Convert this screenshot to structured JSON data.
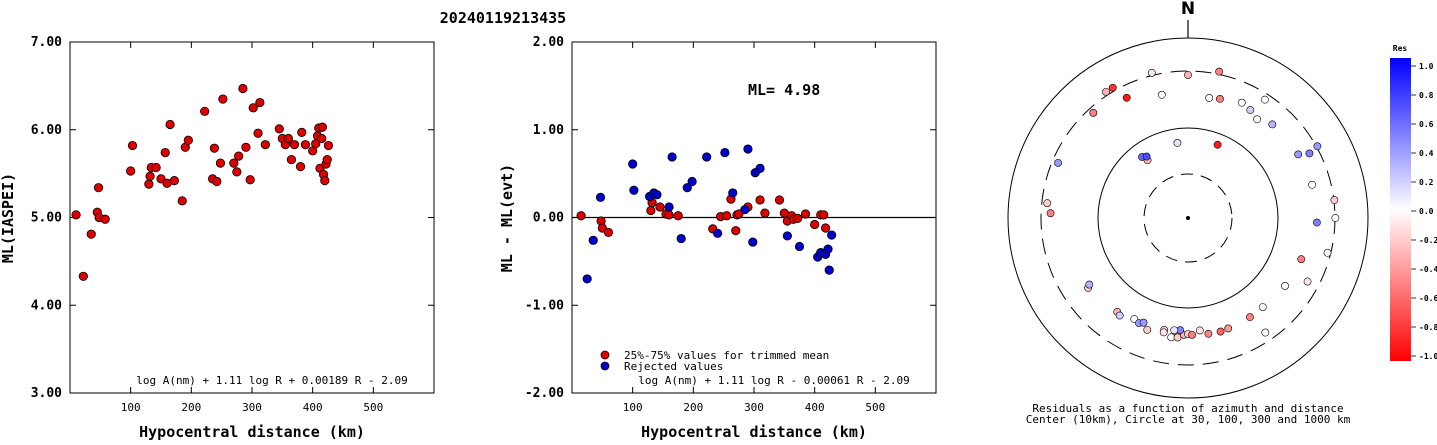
{
  "page_title": "20240119213435",
  "chart_data": [
    {
      "type": "scatter",
      "title": "",
      "xlabel": "Hypocentral distance (km)",
      "ylabel": "ML(IASPEI)",
      "xlim": [
        0,
        600
      ],
      "ylim": [
        3.0,
        7.0
      ],
      "x_ticks": [
        "100",
        "200",
        "300",
        "400",
        "500"
      ],
      "y_ticks": [
        "3.00",
        "4.00",
        "5.00",
        "6.00",
        "7.00"
      ],
      "grid": false,
      "formula": "log A(nm) + 1.11 log R + 0.00189 R - 2.09",
      "series": [
        {
          "color": "#dd0000",
          "points": [
            [
              10,
              5.03
            ],
            [
              22,
              4.33
            ],
            [
              35,
              4.81
            ],
            [
              45,
              5.06
            ],
            [
              47,
              5.34
            ],
            [
              48,
              5.0
            ],
            [
              58,
              4.98
            ],
            [
              100,
              5.53
            ],
            [
              103,
              5.82
            ],
            [
              130,
              5.38
            ],
            [
              132,
              5.47
            ],
            [
              134,
              5.57
            ],
            [
              142,
              5.57
            ],
            [
              150,
              5.44
            ],
            [
              157,
              5.74
            ],
            [
              160,
              5.39
            ],
            [
              165,
              6.06
            ],
            [
              172,
              5.42
            ],
            [
              185,
              5.19
            ],
            [
              190,
              5.8
            ],
            [
              195,
              5.88
            ],
            [
              222,
              6.21
            ],
            [
              235,
              5.44
            ],
            [
              238,
              5.79
            ],
            [
              242,
              5.41
            ],
            [
              248,
              5.62
            ],
            [
              252,
              6.35
            ],
            [
              270,
              5.62
            ],
            [
              275,
              5.52
            ],
            [
              278,
              5.7
            ],
            [
              285,
              6.47
            ],
            [
              290,
              5.8
            ],
            [
              297,
              5.43
            ],
            [
              302,
              6.25
            ],
            [
              310,
              5.96
            ],
            [
              313,
              6.31
            ],
            [
              322,
              5.83
            ],
            [
              345,
              6.01
            ],
            [
              350,
              5.9
            ],
            [
              355,
              5.83
            ],
            [
              360,
              5.9
            ],
            [
              365,
              5.66
            ],
            [
              370,
              5.83
            ],
            [
              380,
              5.58
            ],
            [
              382,
              5.97
            ],
            [
              388,
              5.83
            ],
            [
              400,
              5.76
            ],
            [
              405,
              5.84
            ],
            [
              408,
              5.93
            ],
            [
              410,
              6.02
            ],
            [
              412,
              5.56
            ],
            [
              415,
              5.9
            ],
            [
              416,
              6.03
            ],
            [
              418,
              5.49
            ],
            [
              420,
              5.42
            ],
            [
              422,
              5.61
            ],
            [
              424,
              5.66
            ],
            [
              426,
              5.82
            ]
          ]
        }
      ]
    },
    {
      "type": "scatter",
      "title": "",
      "xlabel": "Hypocentral distance (km)",
      "ylabel": "ML - ML(evt)",
      "xlim": [
        0,
        600
      ],
      "ylim": [
        -2.0,
        2.0
      ],
      "x_ticks": [
        "100",
        "200",
        "300",
        "400",
        "500"
      ],
      "y_ticks": [
        "-2.00",
        "-1.00",
        "0.00",
        "1.00",
        "2.00"
      ],
      "grid": false,
      "annotation": "ML= 4.98",
      "formula": "log A(nm) + 1.11 log R - 0.00061 R - 2.09",
      "series": [
        {
          "name": "25%-75% values for trimmed mean",
          "color": "#dd0000",
          "points": [
            [
              15,
              0.02
            ],
            [
              48,
              -0.04
            ],
            [
              50,
              -0.12
            ],
            [
              60,
              -0.17
            ],
            [
              130,
              0.08
            ],
            [
              132,
              0.17
            ],
            [
              145,
              0.12
            ],
            [
              155,
              0.04
            ],
            [
              160,
              0.03
            ],
            [
              175,
              0.02
            ],
            [
              232,
              -0.13
            ],
            [
              245,
              0.01
            ],
            [
              255,
              0.02
            ],
            [
              262,
              0.21
            ],
            [
              270,
              -0.15
            ],
            [
              272,
              0.03
            ],
            [
              275,
              0.04
            ],
            [
              290,
              0.12
            ],
            [
              310,
              0.2
            ],
            [
              318,
              0.05
            ],
            [
              342,
              0.2
            ],
            [
              350,
              0.05
            ],
            [
              355,
              -0.04
            ],
            [
              362,
              0.02
            ],
            [
              365,
              -0.02
            ],
            [
              372,
              -0.01
            ],
            [
              385,
              0.04
            ],
            [
              400,
              -0.08
            ],
            [
              410,
              0.03
            ],
            [
              415,
              0.03
            ],
            [
              418,
              -0.12
            ]
          ]
        },
        {
          "name": "Rejected values",
          "color": "#0000cc",
          "points": [
            [
              25,
              -0.7
            ],
            [
              35,
              -0.26
            ],
            [
              47,
              0.23
            ],
            [
              100,
              0.61
            ],
            [
              102,
              0.31
            ],
            [
              128,
              0.24
            ],
            [
              135,
              0.28
            ],
            [
              140,
              0.26
            ],
            [
              160,
              0.12
            ],
            [
              165,
              0.69
            ],
            [
              180,
              -0.24
            ],
            [
              190,
              0.34
            ],
            [
              198,
              0.41
            ],
            [
              222,
              0.69
            ],
            [
              240,
              -0.18
            ],
            [
              252,
              0.74
            ],
            [
              265,
              0.28
            ],
            [
              285,
              0.09
            ],
            [
              290,
              0.78
            ],
            [
              298,
              -0.28
            ],
            [
              302,
              0.51
            ],
            [
              310,
              0.56
            ],
            [
              355,
              -0.21
            ],
            [
              375,
              -0.33
            ],
            [
              405,
              -0.45
            ],
            [
              410,
              -0.4
            ],
            [
              418,
              -0.42
            ],
            [
              422,
              -0.36
            ],
            [
              424,
              -0.6
            ],
            [
              428,
              -0.2
            ]
          ]
        }
      ]
    },
    {
      "type": "polar-scatter",
      "north_label": "N",
      "caption_line1": "Residuals as a function of azimuth and distance",
      "caption_line2": "Center (10km), Circle at 30, 100, 300 and 1000 km",
      "colorbar_title": "Res",
      "colorbar_ticks": [
        "1.0",
        "0.8",
        "0.6",
        "0.4",
        "0.2",
        "0.0",
        "-0.2",
        "-0.4",
        "-0.6",
        "-0.8",
        "-1.0"
      ],
      "rings_km": [
        30,
        100,
        300,
        1000
      ],
      "rings_dashed": [
        true,
        false,
        true,
        false
      ],
      "points": [
        [
          -12,
          200,
          0.0
        ],
        [
          22,
          75,
          -0.9
        ],
        [
          -37,
          70,
          0.6
        ],
        [
          -8,
          69,
          0.1
        ],
        [
          -35,
          60,
          -0.3
        ],
        [
          -34,
          66,
          0.7
        ],
        [
          -27,
          238,
          -0.9
        ],
        [
          0,
          278,
          -0.3
        ],
        [
          33,
          268,
          0.0
        ],
        [
          62,
          250,
          0.5
        ],
        [
          118,
          240,
          -0.1
        ],
        [
          146,
          253,
          0.0
        ],
        [
          -42,
          270,
          -0.5
        ],
        [
          -84,
          270,
          -0.2
        ],
        [
          -67,
          268,
          0.4
        ],
        [
          -88,
          250,
          -0.5
        ],
        [
          -30,
          340,
          -0.8
        ],
        [
          -33,
          340,
          -0.3
        ],
        [
          -14,
          330,
          -0.1
        ],
        [
          12,
          330,
          -0.5
        ],
        [
          61,
          310,
          0.4
        ],
        [
          83,
          305,
          -0.2
        ],
        [
          90,
          304,
          0.0
        ],
        [
          104,
          282,
          0.0
        ],
        [
          -125,
          185,
          -0.2
        ],
        [
          -124,
          175,
          0.3
        ],
        [
          -143,
          170,
          -0.3
        ],
        [
          -145,
          175,
          0.2
        ],
        [
          -152,
          160,
          0.0
        ],
        [
          -155,
          165,
          0.4
        ],
        [
          -160,
          175,
          -0.2
        ],
        [
          -157,
          158,
          0.4
        ],
        [
          -168,
          160,
          -0.2
        ],
        [
          -168,
          168,
          -0.1
        ],
        [
          -175,
          165,
          -0.4
        ],
        [
          -172,
          180,
          0.0
        ],
        [
          -175,
          178,
          -0.2
        ],
        [
          -178,
          168,
          -0.3
        ],
        [
          -180,
          165,
          -0.2
        ],
        [
          -182,
          168,
          -0.5
        ],
        [
          -176,
          154,
          0.5
        ],
        [
          -173,
          156,
          0.1
        ],
        [
          -186,
          156,
          -0.1
        ],
        [
          -190,
          170,
          -0.5
        ],
        [
          -196,
          172,
          -0.6
        ],
        [
          -200,
          170,
          -0.4
        ],
        [
          -212,
          168,
          -0.5
        ],
        [
          -220,
          166,
          0.0
        ],
        [
          -235,
          173,
          0.0
        ],
        [
          -250,
          180,
          -0.5
        ],
        [
          -268,
          212,
          0.5
        ],
        [
          -285,
          210,
          0.0
        ],
        [
          -300,
          205,
          0.4
        ],
        [
          -318,
          200,
          0.3
        ],
        [
          -325,
          180,
          0.0
        ],
        [
          -330,
          195,
          0.2
        ],
        [
          -335,
          205,
          0.0
        ],
        [
          -345,
          190,
          -0.5
        ],
        [
          -350,
          185,
          0.0
        ]
      ]
    }
  ]
}
